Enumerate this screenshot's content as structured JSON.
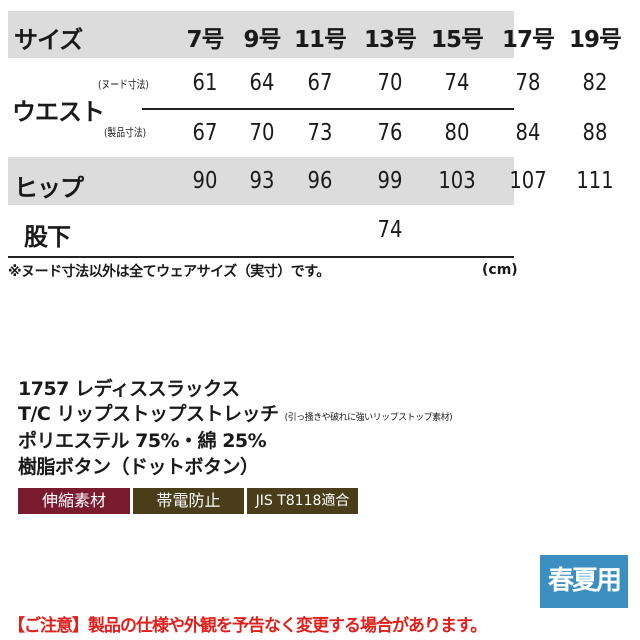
{
  "table": {
    "size_label": "サイズ",
    "sizes": [
      "7号",
      "9号",
      "11号",
      "13号",
      "15号",
      "17号",
      "19号"
    ],
    "waist_label": "ウエスト",
    "waist_nude_label": "(ヌード寸法)",
    "waist_nude": [
      "61",
      "64",
      "67",
      "70",
      "74",
      "78",
      "82"
    ],
    "waist_product_label": "(製品寸法)",
    "waist_product": [
      "67",
      "70",
      "73",
      "76",
      "80",
      "84",
      "88"
    ],
    "hip_label": "ヒップ",
    "hip": [
      "90",
      "93",
      "96",
      "99",
      "103",
      "107",
      "111"
    ],
    "inseam_label": "股下",
    "inseam": "74",
    "note": "※ヌード寸法以外は全てウェアサイズ（実寸）です。",
    "unit": "(cm)",
    "band_color": "#dcdcdc"
  },
  "product": {
    "name": "1757 レディススラックス",
    "fabric": "T/C リップストップストレッチ",
    "fabric_note": "(引っ掻きや破れに強いリップストップ素材)",
    "material": "ポリエステル 75%・綿 25%",
    "buttons": "樹脂ボタン（ドットボタン）",
    "badges": [
      {
        "label": "伸縮素材",
        "color": "#7a1a2e"
      },
      {
        "label": "帯電防止",
        "color": "#4a3d1a"
      },
      {
        "label": "JIS T8118適合",
        "color": "#4a3d1a"
      }
    ],
    "season": "春夏用",
    "season_color": "#3a8fc0"
  },
  "footer": {
    "notice": "【ご注意】製品の仕様や外観を予告なく変更する場合があります。",
    "color": "#e0201c"
  }
}
